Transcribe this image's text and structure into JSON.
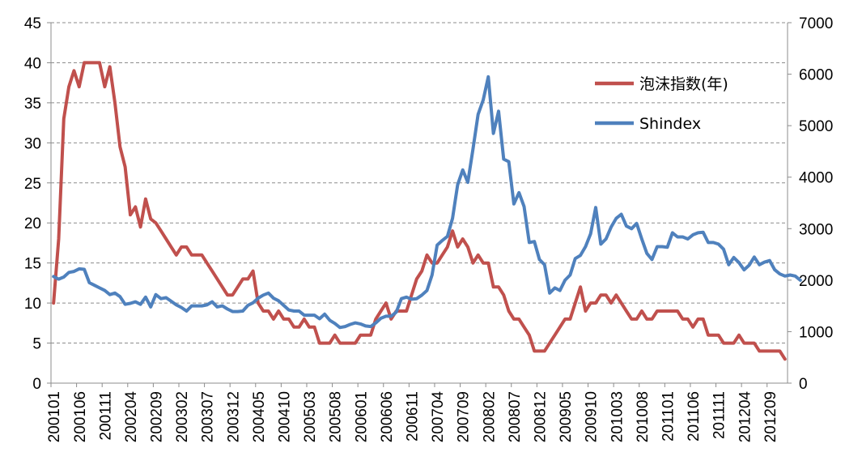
{
  "chart_data": {
    "type": "line",
    "title": "",
    "xlabel": "",
    "ylabel_left": "",
    "ylabel_right": "",
    "left_axis": {
      "min": 0,
      "max": 45,
      "step": 5
    },
    "right_axis": {
      "min": 0,
      "max": 7000,
      "step": 1000
    },
    "grid": "horizontal dashed",
    "legend_position": "top-right",
    "x_tick_labels": [
      "200101",
      "200106",
      "200111",
      "200204",
      "200209",
      "200302",
      "200307",
      "200312",
      "200405",
      "200410",
      "200503",
      "200508",
      "200601",
      "200606",
      "200611",
      "200704",
      "200709",
      "200802",
      "200807",
      "200812",
      "200905",
      "200910",
      "201003",
      "201008",
      "201101",
      "201106",
      "201111",
      "201204",
      "201209"
    ],
    "x_tick_interval_months": 5,
    "series": [
      {
        "name": "泡沫指数(年)",
        "axis": "left",
        "color": "#C0504D",
        "start": "2001-01",
        "values": [
          10,
          18,
          33,
          37,
          39,
          37,
          40,
          40,
          40,
          40,
          37,
          39.5,
          35,
          29.5,
          27,
          21,
          22,
          19.5,
          23,
          20.5,
          20,
          19,
          18,
          17,
          16,
          17,
          17,
          16,
          16,
          16,
          15,
          14,
          13,
          12,
          11,
          11,
          12,
          13,
          13,
          14,
          10,
          9,
          9,
          8,
          9,
          8,
          8,
          7,
          7,
          8,
          7,
          7,
          5,
          5,
          5,
          6,
          5,
          5,
          5,
          5,
          6,
          6,
          6,
          8,
          9,
          10,
          8,
          9,
          9,
          9,
          11,
          13,
          14,
          16,
          15,
          15,
          16,
          17,
          19,
          17,
          18,
          17,
          15,
          16,
          15,
          15,
          12,
          12,
          11,
          9,
          8,
          8,
          7,
          6,
          4,
          4,
          4,
          5,
          6,
          7,
          8,
          8,
          10,
          12,
          9,
          10,
          10,
          11,
          11,
          10,
          11,
          10,
          9,
          8,
          8,
          9,
          8,
          8,
          9,
          9,
          9,
          9,
          9,
          8,
          8,
          7,
          8,
          8,
          6,
          6,
          6,
          5,
          5,
          5,
          6,
          5,
          5,
          5,
          4,
          4,
          4,
          4,
          4,
          3
        ]
      },
      {
        "name": "Shindex",
        "axis": "right",
        "color": "#4F81BD",
        "start": "2001-01",
        "values": [
          2070,
          2020,
          2060,
          2150,
          2170,
          2220,
          2210,
          1950,
          1900,
          1850,
          1800,
          1720,
          1750,
          1680,
          1530,
          1550,
          1580,
          1530,
          1670,
          1480,
          1720,
          1640,
          1660,
          1590,
          1520,
          1470,
          1400,
          1500,
          1500,
          1500,
          1520,
          1580,
          1480,
          1500,
          1440,
          1390,
          1390,
          1400,
          1510,
          1560,
          1650,
          1710,
          1750,
          1650,
          1600,
          1510,
          1420,
          1400,
          1400,
          1320,
          1320,
          1320,
          1250,
          1340,
          1220,
          1160,
          1080,
          1100,
          1140,
          1170,
          1150,
          1110,
          1100,
          1170,
          1260,
          1300,
          1300,
          1380,
          1640,
          1670,
          1630,
          1640,
          1710,
          1800,
          2100,
          2680,
          2770,
          2850,
          3200,
          3850,
          4140,
          3900,
          4550,
          5220,
          5500,
          5950,
          4850,
          5280,
          4350,
          4300,
          3480,
          3700,
          3430,
          2730,
          2750,
          2400,
          2300,
          1750,
          1850,
          1800,
          2000,
          2100,
          2420,
          2480,
          2650,
          2900,
          3410,
          2700,
          2800,
          3030,
          3200,
          3280,
          3050,
          3000,
          3100,
          2800,
          2520,
          2400,
          2650,
          2650,
          2640,
          2920,
          2840,
          2840,
          2800,
          2880,
          2920,
          2930,
          2730,
          2730,
          2700,
          2600,
          2300,
          2440,
          2340,
          2200,
          2290,
          2450,
          2300,
          2350,
          2380,
          2200,
          2120,
          2080,
          2100,
          2080,
          2000
        ]
      }
    ]
  }
}
